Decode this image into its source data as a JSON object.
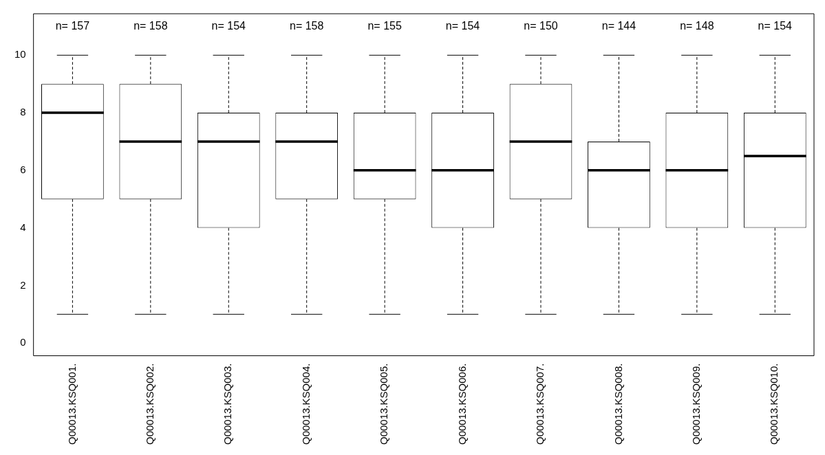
{
  "chart_data": {
    "type": "box",
    "categories": [
      "Q00013.KSQ001.",
      "Q00013.KSQ002.",
      "Q00013.KSQ003.",
      "Q00013.KSQ004.",
      "Q00013.KSQ005.",
      "Q00013.KSQ006.",
      "Q00013.KSQ007.",
      "Q00013.KSQ008.",
      "Q00013.KSQ009.",
      "Q00013.KSQ010."
    ],
    "boxes": [
      {
        "low": 1,
        "q1": 5,
        "median": 8,
        "q3": 9,
        "high": 10
      },
      {
        "low": 1,
        "q1": 5,
        "median": 7,
        "q3": 9,
        "high": 10
      },
      {
        "low": 1,
        "q1": 4,
        "median": 7,
        "q3": 8,
        "high": 10
      },
      {
        "low": 1,
        "q1": 5,
        "median": 7,
        "q3": 8,
        "high": 10
      },
      {
        "low": 1,
        "q1": 5,
        "median": 6,
        "q3": 8,
        "high": 10
      },
      {
        "low": 1,
        "q1": 4,
        "median": 6,
        "q3": 8,
        "high": 10
      },
      {
        "low": 1,
        "q1": 5,
        "median": 7,
        "q3": 9,
        "high": 10
      },
      {
        "low": 1,
        "q1": 4,
        "median": 6,
        "q3": 7,
        "high": 10
      },
      {
        "low": 1,
        "q1": 4,
        "median": 6,
        "q3": 8,
        "high": 10
      },
      {
        "low": 1,
        "q1": 4,
        "median": 6.5,
        "q3": 8,
        "high": 10
      }
    ],
    "ylim": [
      -0.44,
      11.44
    ],
    "yticks": [
      0,
      2,
      4,
      6,
      8,
      10
    ],
    "annotations": [
      "n= 157",
      "n= 158",
      "n= 154",
      "n= 158",
      "n= 155",
      "n= 154",
      "n= 150",
      "n= 144",
      "n= 148",
      "n= 154"
    ]
  }
}
